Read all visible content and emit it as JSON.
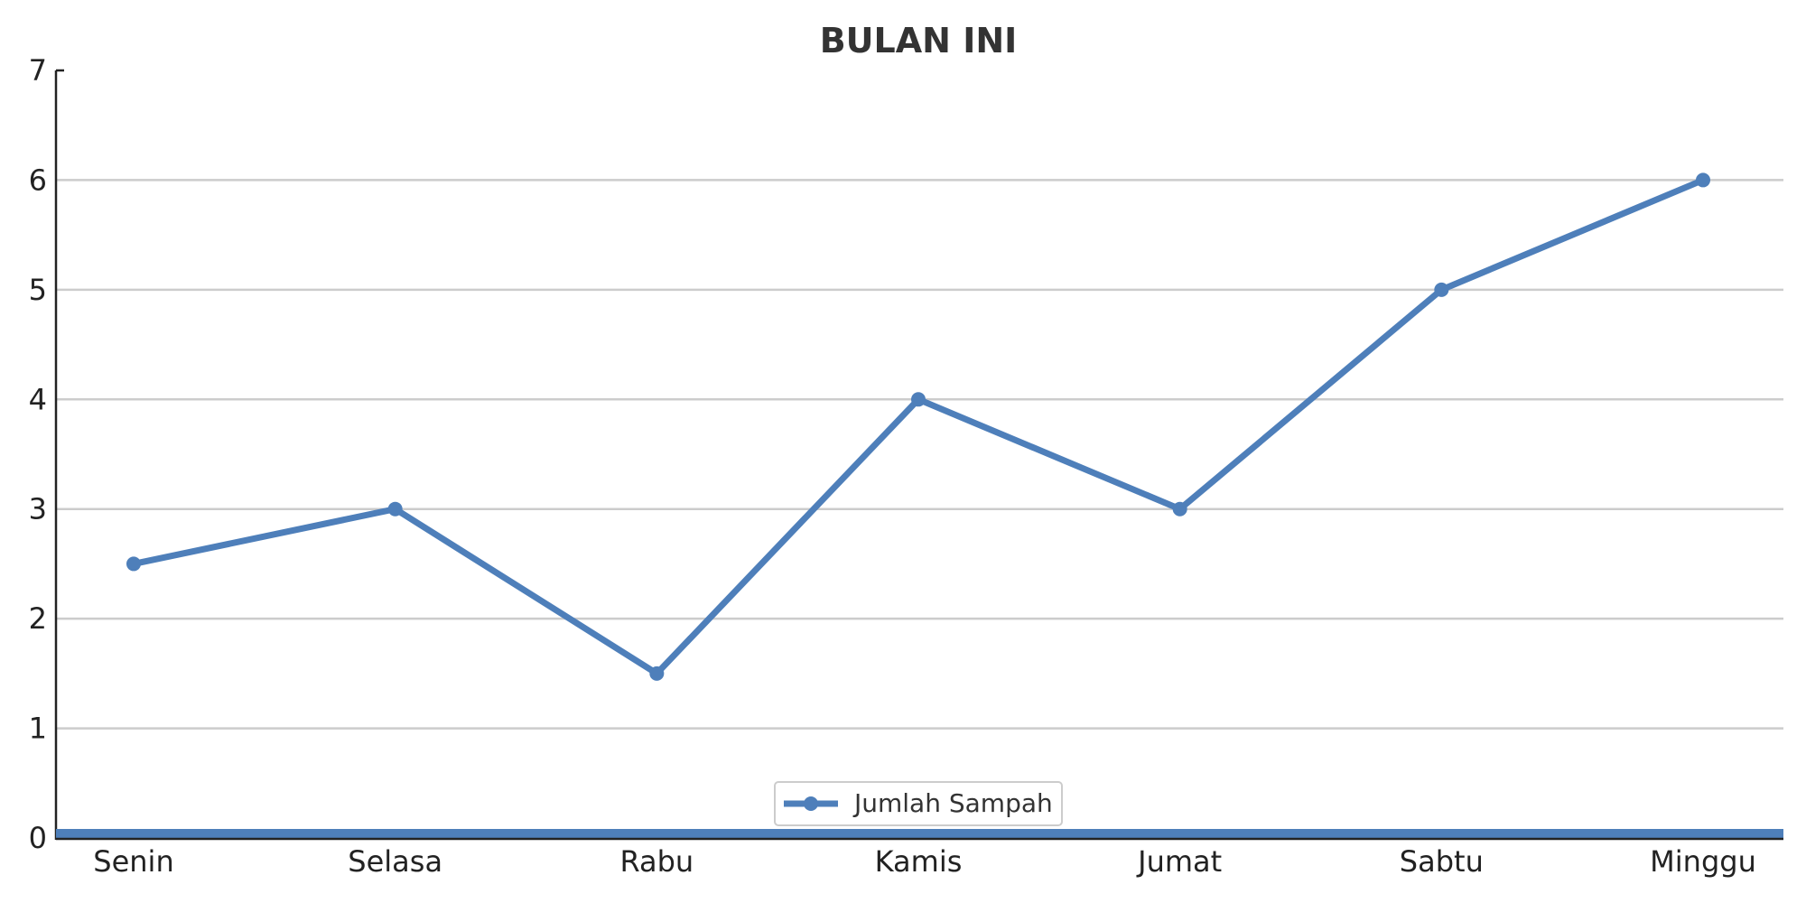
{
  "chart_data": {
    "type": "line",
    "title": "BULAN INI",
    "xlabel": "",
    "ylabel": "",
    "categories": [
      "Senin",
      "Selasa",
      "Rabu",
      "Kamis",
      "Jumat",
      "Sabtu",
      "Minggu"
    ],
    "series": [
      {
        "name": "Jumlah Sampah",
        "values": [
          2.5,
          3,
          1.5,
          4,
          3,
          5,
          6
        ],
        "color": "#4e7fba"
      }
    ],
    "ylim": [
      0,
      7
    ],
    "yticks": [
      0,
      1,
      2,
      3,
      4,
      5,
      6,
      7
    ],
    "grid": "horizontal",
    "legend": "bottom-center",
    "baseline_color": "#4e7fba"
  }
}
